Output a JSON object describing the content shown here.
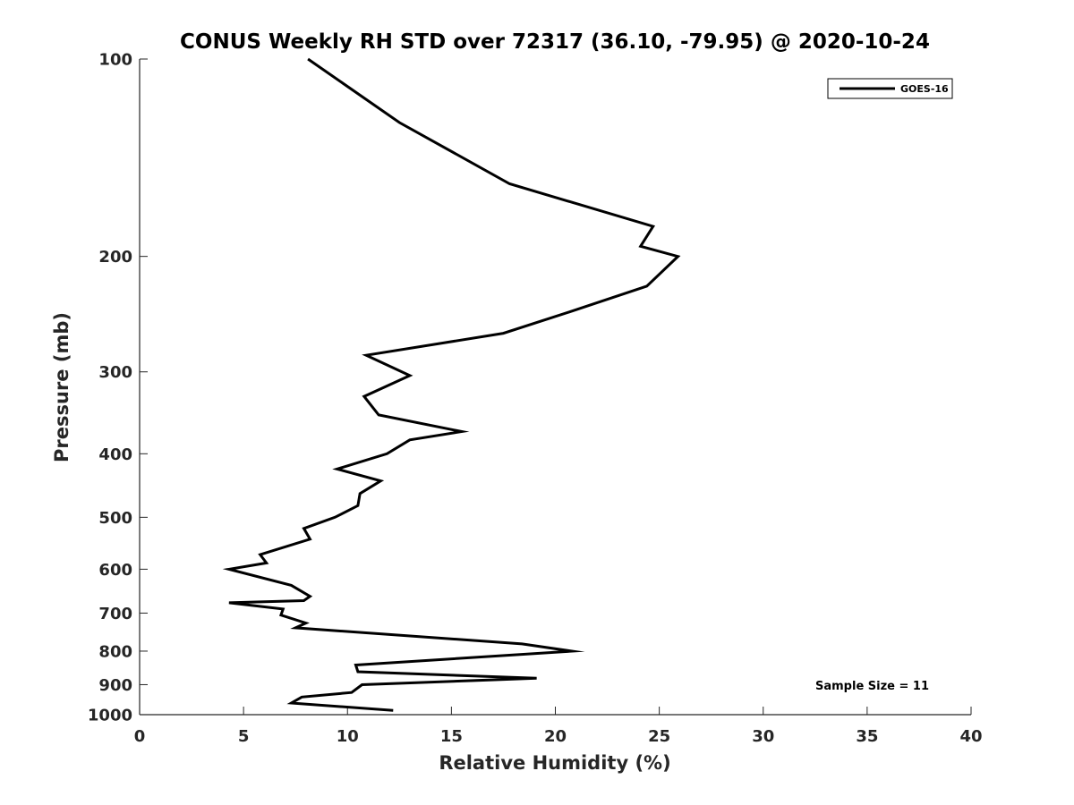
{
  "chart_data": {
    "type": "line",
    "title": "CONUS Weekly RH STD over 72317 (36.10, -79.95) @ 2020-10-24",
    "xlabel": "Relative Humidity (%)",
    "ylabel": "Pressure (mb)",
    "xlim": [
      0,
      40
    ],
    "ylim": [
      1000,
      100
    ],
    "y_scale": "log",
    "y_reversed": true,
    "x_ticks": [
      0,
      5,
      10,
      15,
      20,
      25,
      30,
      35,
      40
    ],
    "y_ticks": [
      100,
      200,
      300,
      400,
      500,
      600,
      700,
      800,
      900,
      1000
    ],
    "grid": false,
    "legend_position": "top-right",
    "series": [
      {
        "name": "GOES-16",
        "color": "#000000",
        "x": [
          8.1,
          12.5,
          17.8,
          24.7,
          24.1,
          25.9,
          24.4,
          20.7,
          17.5,
          10.9,
          13.0,
          10.8,
          11.5,
          15.5,
          13.0,
          11.9,
          9.5,
          11.6,
          10.6,
          10.5,
          9.4,
          7.9,
          8.2,
          5.8,
          6.1,
          4.3,
          7.3,
          8.2,
          7.9,
          4.3,
          6.9,
          6.8,
          8.0,
          7.5,
          18.4,
          20.8,
          10.4,
          10.5,
          19.1,
          10.7,
          10.2,
          7.8,
          7.3,
          12.2
        ],
        "y": [
          100,
          125,
          155,
          180,
          193,
          200,
          222,
          243,
          262,
          283,
          304,
          327,
          349,
          370,
          381,
          400,
          422,
          440,
          460,
          480,
          500,
          520,
          540,
          570,
          587,
          600,
          635,
          660,
          670,
          675,
          690,
          705,
          725,
          737,
          780,
          800,
          840,
          860,
          880,
          900,
          925,
          940,
          960,
          985
        ]
      }
    ]
  },
  "annotation": {
    "sample_size": "Sample Size = 11"
  }
}
